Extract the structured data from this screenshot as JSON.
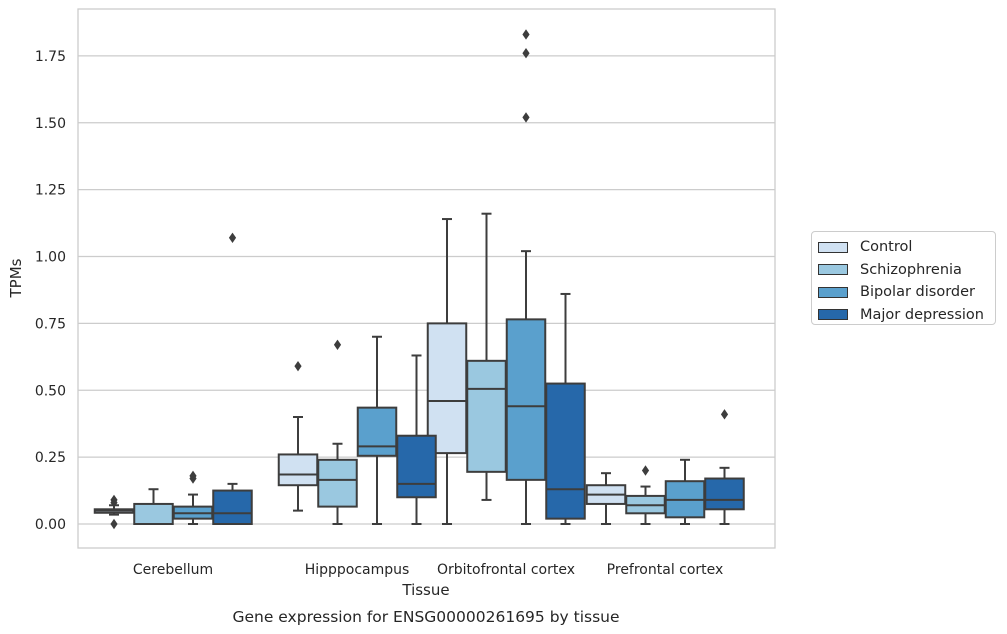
{
  "chart_data": {
    "type": "box",
    "xlabel": "Tissue",
    "ylabel": "TPMs",
    "caption": "Gene expression for ENSG00000261695 by tissue",
    "categories": [
      "Cerebellum",
      "Hipppocampus",
      "Orbitofrontal cortex",
      "Prefrontal cortex"
    ],
    "ylim": [
      -0.09,
      1.93
    ],
    "yticks": [
      "0.00",
      "0.25",
      "0.50",
      "0.75",
      "1.00",
      "1.25",
      "1.50",
      "1.75"
    ],
    "grid": true,
    "legend_position": "right",
    "series": [
      {
        "name": "Control",
        "color": "#d0e1f2",
        "boxes": [
          {
            "whislo": 0.035,
            "q1": 0.042,
            "med": 0.05,
            "q3": 0.055,
            "whishi": 0.07,
            "fliers": [
              0.0,
              0.08,
              0.09
            ]
          },
          {
            "whislo": 0.05,
            "q1": 0.145,
            "med": 0.185,
            "q3": 0.26,
            "whishi": 0.4,
            "fliers": [
              0.59
            ]
          },
          {
            "whislo": 0.0,
            "q1": 0.265,
            "med": 0.46,
            "q3": 0.75,
            "whishi": 1.14,
            "fliers": []
          },
          {
            "whislo": 0.0,
            "q1": 0.075,
            "med": 0.11,
            "q3": 0.145,
            "whishi": 0.19,
            "fliers": []
          }
        ]
      },
      {
        "name": "Schizophrenia",
        "color": "#9ac8e0",
        "boxes": [
          {
            "whislo": 0.0,
            "q1": 0.0,
            "med": 0.0,
            "q3": 0.075,
            "whishi": 0.13,
            "fliers": []
          },
          {
            "whislo": 0.0,
            "q1": 0.065,
            "med": 0.165,
            "q3": 0.24,
            "whishi": 0.3,
            "fliers": [
              0.67
            ]
          },
          {
            "whislo": 0.09,
            "q1": 0.195,
            "med": 0.505,
            "q3": 0.61,
            "whishi": 1.16,
            "fliers": []
          },
          {
            "whislo": 0.0,
            "q1": 0.04,
            "med": 0.07,
            "q3": 0.105,
            "whishi": 0.14,
            "fliers": [
              0.2
            ]
          }
        ]
      },
      {
        "name": "Bipolar disorder",
        "color": "#5aa0cd",
        "boxes": [
          {
            "whislo": 0.0,
            "q1": 0.02,
            "med": 0.04,
            "q3": 0.065,
            "whishi": 0.11,
            "fliers": [
              0.17,
              0.18
            ]
          },
          {
            "whislo": 0.0,
            "q1": 0.255,
            "med": 0.29,
            "q3": 0.435,
            "whishi": 0.7,
            "fliers": []
          },
          {
            "whislo": 0.0,
            "q1": 0.165,
            "med": 0.44,
            "q3": 0.765,
            "whishi": 1.02,
            "fliers": [
              1.52,
              1.76,
              1.83
            ]
          },
          {
            "whislo": 0.0,
            "q1": 0.025,
            "med": 0.09,
            "q3": 0.16,
            "whishi": 0.24,
            "fliers": []
          }
        ]
      },
      {
        "name": "Major depression",
        "color": "#2668aa",
        "boxes": [
          {
            "whislo": 0.0,
            "q1": 0.0,
            "med": 0.04,
            "q3": 0.125,
            "whishi": 0.15,
            "fliers": [
              1.07
            ]
          },
          {
            "whislo": 0.0,
            "q1": 0.1,
            "med": 0.15,
            "q3": 0.33,
            "whishi": 0.63,
            "fliers": []
          },
          {
            "whislo": 0.0,
            "q1": 0.02,
            "med": 0.13,
            "q3": 0.525,
            "whishi": 0.86,
            "fliers": []
          },
          {
            "whislo": 0.0,
            "q1": 0.055,
            "med": 0.09,
            "q3": 0.17,
            "whishi": 0.21,
            "fliers": [
              0.41
            ]
          }
        ]
      }
    ]
  }
}
